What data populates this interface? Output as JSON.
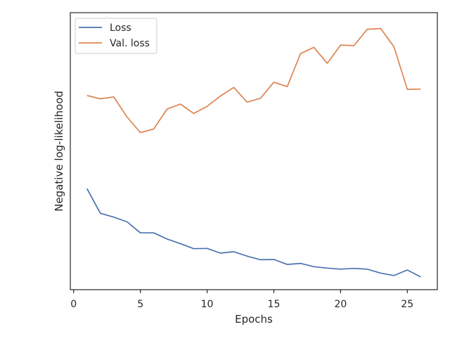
{
  "chart_data": {
    "type": "line",
    "xlabel": "Epochs",
    "ylabel": "Negative log-likelihood",
    "xlim": [
      -0.25,
      27.25
    ],
    "ylim": [
      0.0,
      1.0
    ],
    "xticks": [
      0,
      5,
      10,
      15,
      20,
      25
    ],
    "yticks_visible": false,
    "grid": false,
    "legend_position": "top-left",
    "x": [
      1,
      2,
      3,
      4,
      5,
      6,
      7,
      8,
      9,
      10,
      11,
      12,
      13,
      14,
      15,
      16,
      17,
      18,
      19,
      20,
      21,
      22,
      23,
      24,
      25,
      26
    ],
    "series": [
      {
        "name": "Loss",
        "color": "#4c72b0",
        "values": [
          0.365,
          0.276,
          0.262,
          0.245,
          0.205,
          0.205,
          0.183,
          0.166,
          0.148,
          0.149,
          0.132,
          0.137,
          0.121,
          0.108,
          0.109,
          0.091,
          0.095,
          0.083,
          0.078,
          0.074,
          0.077,
          0.074,
          0.06,
          0.051,
          0.071,
          0.046
        ]
      },
      {
        "name": "Val. loss",
        "color": "#dd8452",
        "values": [
          0.701,
          0.689,
          0.696,
          0.623,
          0.567,
          0.58,
          0.652,
          0.67,
          0.636,
          0.662,
          0.699,
          0.73,
          0.677,
          0.691,
          0.749,
          0.733,
          0.852,
          0.875,
          0.817,
          0.883,
          0.881,
          0.94,
          0.943,
          0.877,
          0.723,
          0.724
        ]
      }
    ]
  }
}
